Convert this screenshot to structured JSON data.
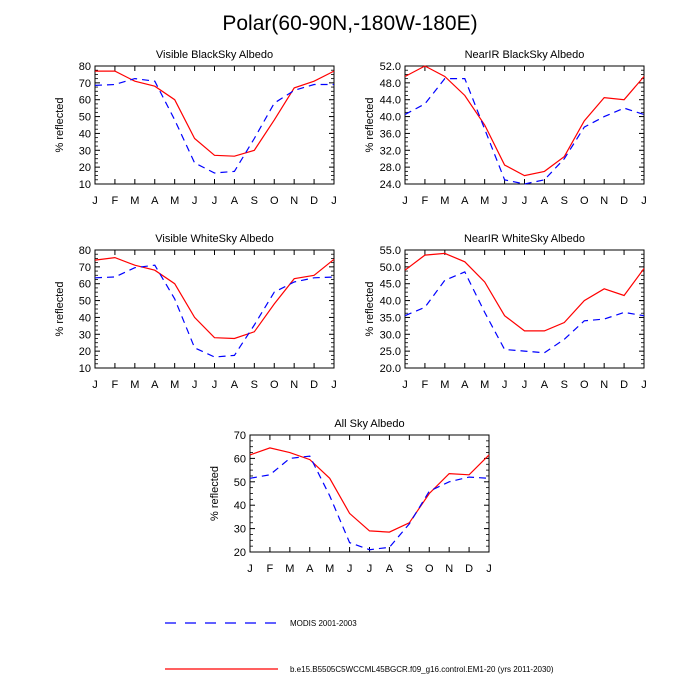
{
  "main_title": "Polar(60-90N,-180W-180E)",
  "legend": {
    "modis": "MODIS 2001-2003",
    "model": "b.e15.B5505C5WCCML45BGCR.f09_g16.control.EM1-20 (yrs 2011-2030)"
  },
  "colors": {
    "model": "#ff0000",
    "modis": "#0000ff"
  },
  "chart_data": [
    {
      "type": "line",
      "title": "Visible BlackSky Albedo",
      "xlabel": "",
      "ylabel": "% reflected",
      "categories": [
        "J",
        "F",
        "M",
        "A",
        "M",
        "J",
        "J",
        "A",
        "S",
        "O",
        "N",
        "D",
        "J"
      ],
      "ylim": [
        10,
        80
      ],
      "yticks": [
        "10",
        "20",
        "30",
        "40",
        "50",
        "60",
        "70",
        "80"
      ],
      "series": [
        {
          "id": "model",
          "style": "solid",
          "values": [
            77,
            77,
            71,
            68,
            60,
            37,
            27,
            26.5,
            30,
            48,
            67,
            71,
            77
          ]
        },
        {
          "id": "modis",
          "style": "dashed",
          "values": [
            68.5,
            69,
            72.5,
            71,
            48,
            22.5,
            16.5,
            17.5,
            37,
            58,
            65.5,
            69,
            69
          ]
        }
      ]
    },
    {
      "type": "line",
      "title": "NearIR BlackSky Albedo",
      "xlabel": "",
      "ylabel": "% reflected",
      "categories": [
        "J",
        "F",
        "M",
        "A",
        "M",
        "J",
        "J",
        "A",
        "S",
        "O",
        "N",
        "D",
        "J"
      ],
      "ylim": [
        24,
        52
      ],
      "yticks": [
        "24.0",
        "28.0",
        "32.0",
        "36.0",
        "40.0",
        "44.0",
        "48.0",
        "52.0"
      ],
      "series": [
        {
          "id": "model",
          "style": "solid",
          "values": [
            49.5,
            52,
            49.5,
            45,
            38,
            28.5,
            26,
            27,
            30.5,
            39,
            44.5,
            44,
            49.5
          ]
        },
        {
          "id": "modis",
          "style": "dashed",
          "values": [
            40.5,
            43,
            49,
            49,
            37,
            25,
            24,
            25,
            30,
            37.5,
            40,
            42,
            40.5
          ]
        }
      ]
    },
    {
      "type": "line",
      "title": "Visible WhiteSky Albedo",
      "xlabel": "",
      "ylabel": "% reflected",
      "categories": [
        "J",
        "F",
        "M",
        "A",
        "M",
        "J",
        "J",
        "A",
        "S",
        "O",
        "N",
        "D",
        "J"
      ],
      "ylim": [
        10,
        80
      ],
      "yticks": [
        "10",
        "20",
        "30",
        "40",
        "50",
        "60",
        "70",
        "80"
      ],
      "series": [
        {
          "id": "model",
          "style": "solid",
          "values": [
            74,
            75.5,
            71,
            68,
            60,
            40,
            28,
            27.5,
            31.5,
            48,
            63,
            65,
            74.5
          ]
        },
        {
          "id": "modis",
          "style": "dashed",
          "values": [
            63.5,
            64,
            69.5,
            71,
            51,
            22,
            16.5,
            17.5,
            35.5,
            55,
            61,
            63.5,
            64
          ]
        }
      ]
    },
    {
      "type": "line",
      "title": "NearIR WhiteSky Albedo",
      "xlabel": "",
      "ylabel": "% reflected",
      "categories": [
        "J",
        "F",
        "M",
        "A",
        "M",
        "J",
        "J",
        "A",
        "S",
        "O",
        "N",
        "D",
        "J"
      ],
      "ylim": [
        20,
        55
      ],
      "yticks": [
        "20.0",
        "25.0",
        "30.0",
        "35.0",
        "40.0",
        "45.0",
        "50.0",
        "55.0"
      ],
      "series": [
        {
          "id": "model",
          "style": "solid",
          "values": [
            49,
            53.5,
            54,
            51.5,
            45.5,
            35.5,
            31,
            31,
            33.5,
            40,
            43.5,
            41.5,
            49.5
          ]
        },
        {
          "id": "modis",
          "style": "dashed",
          "values": [
            35.5,
            38,
            46,
            48.5,
            36.5,
            25.5,
            25,
            24.5,
            28.5,
            34,
            34.5,
            36.5,
            35.5
          ]
        }
      ]
    },
    {
      "type": "line",
      "title": "All Sky Albedo",
      "xlabel": "",
      "ylabel": "% reflected",
      "categories": [
        "J",
        "F",
        "M",
        "A",
        "M",
        "J",
        "J",
        "A",
        "S",
        "O",
        "N",
        "D",
        "J"
      ],
      "ylim": [
        20,
        70
      ],
      "yticks": [
        "20",
        "30",
        "40",
        "50",
        "60",
        "70"
      ],
      "series": [
        {
          "id": "model",
          "style": "solid",
          "values": [
            61.5,
            64.5,
            62.5,
            59.5,
            51.5,
            36.5,
            29,
            28.5,
            32.5,
            45,
            53.5,
            53,
            61.5
          ]
        },
        {
          "id": "modis",
          "style": "dashed",
          "values": [
            51.5,
            53,
            60,
            61,
            44,
            24,
            21,
            22,
            32,
            46,
            50,
            52,
            51.5
          ]
        }
      ]
    }
  ]
}
